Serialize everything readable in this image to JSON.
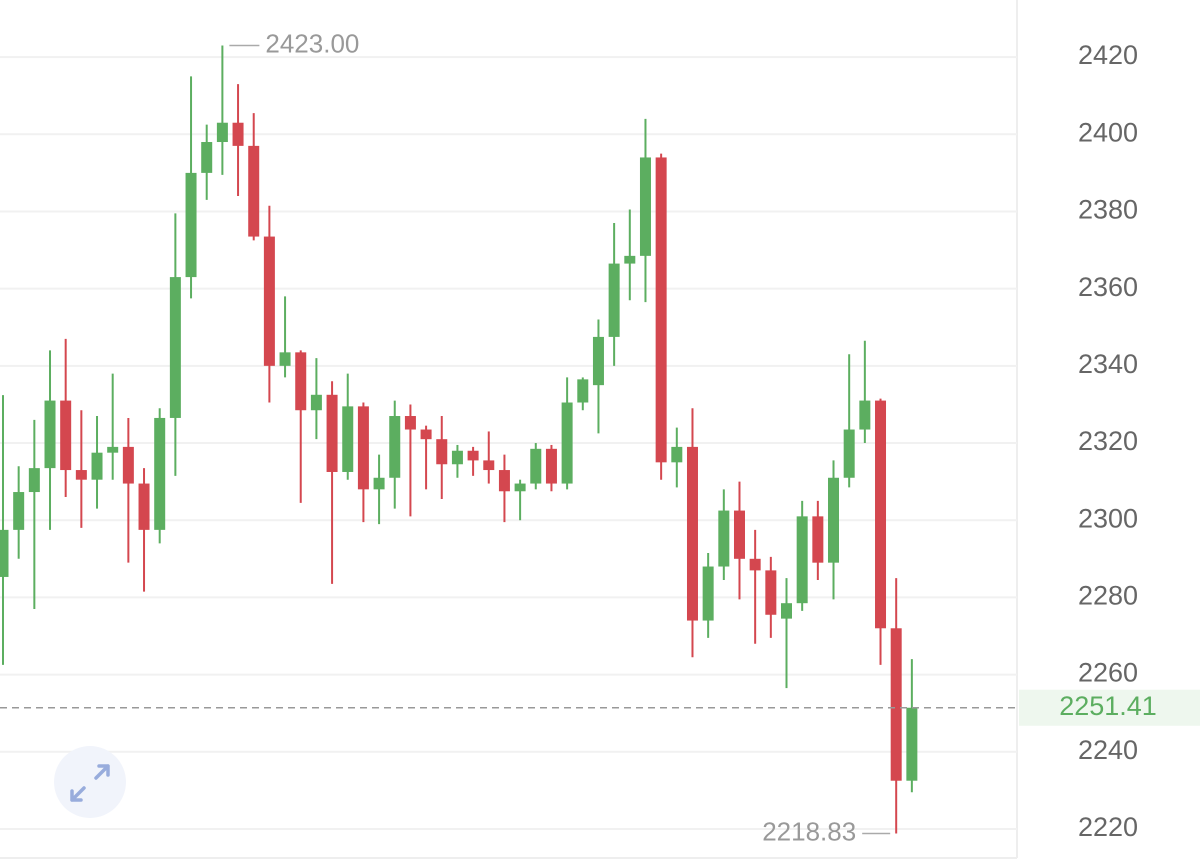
{
  "chart_data": {
    "type": "candlestick",
    "open": [
      2285.3,
      2297.5,
      2307.3,
      2313.5,
      2331,
      2313,
      2310.5,
      2317.5,
      2319,
      2309.5,
      2297.5,
      2326.5,
      2363,
      2390,
      2398,
      2403,
      2397,
      2373.5,
      2340,
      2343.5,
      2328.5,
      2332.5,
      2312.5,
      2329.5,
      2308,
      2311,
      2327,
      2323.5,
      2321,
      2314.5,
      2318,
      2315.5,
      2313,
      2307.5,
      2309.5,
      2318.5,
      2309.5,
      2330.5,
      2335,
      2347.5,
      2366.5,
      2368.5,
      2394,
      2315,
      2319,
      2274,
      2288,
      2302.5,
      2290,
      2287,
      2274.5,
      2278.5,
      2301,
      2289,
      2311,
      2323.5,
      2331,
      2272,
      2232.5
    ],
    "high": [
      2332.4,
      2314,
      2326,
      2344,
      2347,
      2328.5,
      2327,
      2338,
      2326.5,
      2313.5,
      2329,
      2379.5,
      2415,
      2402.5,
      2423,
      2413,
      2405.5,
      2381.5,
      2358,
      2344,
      2342,
      2336,
      2338,
      2330.5,
      2317,
      2331,
      2330,
      2324.5,
      2327,
      2319.5,
      2319,
      2323,
      2317,
      2310.5,
      2320,
      2319.5,
      2337,
      2337,
      2352,
      2377,
      2380.5,
      2404,
      2395,
      2324,
      2329,
      2291.5,
      2308,
      2310,
      2297.5,
      2290.5,
      2285,
      2305,
      2305,
      2315.5,
      2343,
      2346.5,
      2331.5,
      2285,
      2264
    ],
    "low": [
      2262.5,
      2290,
      2277,
      2297.5,
      2306,
      2298,
      2303,
      2310.5,
      2289,
      2281.5,
      2294,
      2311.5,
      2357.5,
      2383,
      2389.5,
      2384,
      2372.5,
      2330.5,
      2337,
      2304.5,
      2321,
      2283.5,
      2310.5,
      2299.5,
      2299,
      2303,
      2301,
      2308,
      2305.5,
      2311,
      2311.5,
      2309.5,
      2299.5,
      2300,
      2308,
      2307.5,
      2308,
      2328.5,
      2322.5,
      2340,
      2357,
      2356.5,
      2310.5,
      2308.5,
      2264.5,
      2269.5,
      2284.5,
      2279.5,
      2268,
      2269.5,
      2256.5,
      2276.5,
      2284.5,
      2279.5,
      2308.5,
      2320,
      2262.5,
      2218.83,
      2229.5
    ],
    "close": [
      2297.5,
      2307.3,
      2313.5,
      2331,
      2313,
      2310.5,
      2317.5,
      2319,
      2309.5,
      2297.5,
      2326.5,
      2363,
      2390,
      2398,
      2403,
      2397,
      2373.5,
      2340,
      2343.5,
      2328.5,
      2332.5,
      2312.5,
      2329.5,
      2308,
      2311,
      2327,
      2323.5,
      2321,
      2314.5,
      2318,
      2315.5,
      2313,
      2307.5,
      2309.5,
      2318.5,
      2309.5,
      2330.5,
      2336.5,
      2347.5,
      2366.5,
      2368.5,
      2394,
      2315,
      2319,
      2274,
      2288,
      2302.5,
      2290,
      2287,
      2275.5,
      2278.5,
      2301,
      2289,
      2311,
      2323.5,
      2331,
      2272,
      2232.5,
      2251.41
    ],
    "up_color": "#5cae60",
    "down_color": "#d4474f",
    "ylim": [
      2210.4,
      2434.8
    ],
    "yticks": [
      2220,
      2240,
      2260,
      2280,
      2300,
      2320,
      2340,
      2360,
      2380,
      2400,
      2420
    ],
    "grid": true,
    "max_label": {
      "value": 2423,
      "label": "2423.00"
    },
    "min_label": {
      "value": 2218.83,
      "label": "2218.83"
    },
    "last_price": {
      "value": 2251.41,
      "label": "2251.41"
    }
  }
}
